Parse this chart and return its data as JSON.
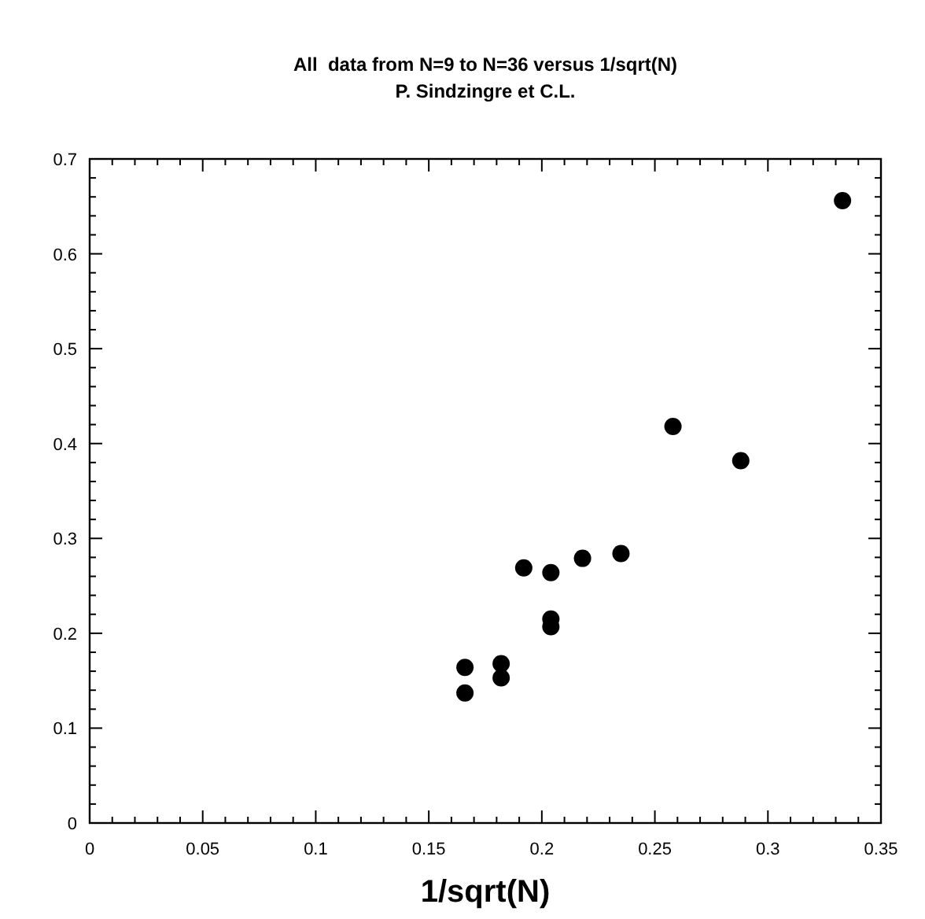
{
  "chart_data": {
    "type": "scatter",
    "title": "All  data from N=9 to N=36 versus 1/sqrt(N)",
    "subtitle": "P. Sindzingre et C.L.",
    "xlabel": "1/sqrt(N)",
    "x": [
      0.333,
      0.258,
      0.288,
      0.235,
      0.218,
      0.192,
      0.204,
      0.204,
      0.204,
      0.182,
      0.182,
      0.166,
      0.166
    ],
    "values": [
      0.656,
      0.418,
      0.382,
      0.284,
      0.279,
      0.269,
      0.264,
      0.215,
      0.207,
      0.168,
      0.153,
      0.164,
      0.137
    ],
    "color": "#000000",
    "marker": "circle",
    "grid": false,
    "xlim": [
      0,
      0.35
    ],
    "ylim": [
      0,
      0.7
    ],
    "xticks": [
      0,
      {
        "value": 0.01,
        "label": null
      },
      {
        "value": 0.02,
        "label": null
      },
      {
        "value": 0.03,
        "label": null
      },
      {
        "value": 0.04,
        "label": null
      },
      0.05,
      {
        "value": 0.06,
        "label": null
      },
      {
        "value": 0.07,
        "label": null
      },
      {
        "value": 0.08,
        "label": null
      },
      {
        "value": 0.09,
        "label": null
      },
      0.1,
      {
        "value": 0.11,
        "label": null
      },
      {
        "value": 0.12,
        "label": null
      },
      {
        "value": 0.13,
        "label": null
      },
      {
        "value": 0.14,
        "label": null
      },
      0.15,
      {
        "value": 0.16,
        "label": null
      },
      {
        "value": 0.17,
        "label": null
      },
      {
        "value": 0.18,
        "label": null
      },
      {
        "value": 0.19,
        "label": null
      },
      0.2,
      {
        "value": 0.21,
        "label": null
      },
      {
        "value": 0.22,
        "label": null
      },
      {
        "value": 0.23,
        "label": null
      },
      {
        "value": 0.24,
        "label": null
      },
      0.25,
      {
        "value": 0.26,
        "label": null
      },
      {
        "value": 0.27,
        "label": null
      },
      {
        "value": 0.28,
        "label": null
      },
      {
        "value": 0.29,
        "label": null
      },
      0.3,
      {
        "value": 0.31,
        "label": null
      },
      {
        "value": 0.32,
        "label": null
      },
      {
        "value": 0.33,
        "label": null
      },
      {
        "value": 0.34,
        "label": null
      },
      0.35
    ],
    "yticks": [
      0,
      {
        "value": 0.02,
        "label": null
      },
      {
        "value": 0.04,
        "label": null
      },
      {
        "value": 0.06,
        "label": null
      },
      {
        "value": 0.08,
        "label": null
      },
      0.1,
      {
        "value": 0.12,
        "label": null
      },
      {
        "value": 0.14,
        "label": null
      },
      {
        "value": 0.16,
        "label": null
      },
      {
        "value": 0.18,
        "label": null
      },
      0.2,
      {
        "value": 0.22,
        "label": null
      },
      {
        "value": 0.24,
        "label": null
      },
      {
        "value": 0.26,
        "label": null
      },
      {
        "value": 0.28,
        "label": null
      },
      0.3,
      {
        "value": 0.32,
        "label": null
      },
      {
        "value": 0.34,
        "label": null
      },
      {
        "value": 0.36,
        "label": null
      },
      {
        "value": 0.38,
        "label": null
      },
      0.4,
      {
        "value": 0.42,
        "label": null
      },
      {
        "value": 0.44,
        "label": null
      },
      {
        "value": 0.46,
        "label": null
      },
      {
        "value": 0.48,
        "label": null
      },
      0.5,
      {
        "value": 0.52,
        "label": null
      },
      {
        "value": 0.54,
        "label": null
      },
      {
        "value": 0.56,
        "label": null
      },
      {
        "value": 0.58,
        "label": null
      },
      0.6,
      {
        "value": 0.62,
        "label": null
      },
      {
        "value": 0.64,
        "label": null
      },
      {
        "value": 0.66,
        "label": null
      },
      {
        "value": 0.68,
        "label": null
      },
      0.7
    ]
  }
}
